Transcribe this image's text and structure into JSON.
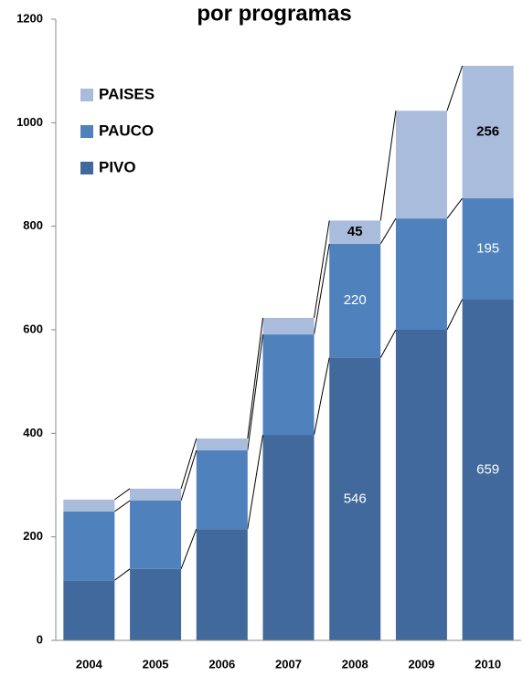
{
  "chart_data": {
    "type": "stacked_bar",
    "title": "por programas",
    "categories": [
      "2004",
      "2005",
      "2006",
      "2007",
      "2008",
      "2009",
      "2010"
    ],
    "series": [
      {
        "name": "PIVO",
        "color": "#41699b",
        "values": [
          116,
          138,
          215,
          397,
          546,
          600,
          659
        ],
        "value_labels": [
          null,
          null,
          null,
          null,
          "546",
          null,
          "659"
        ]
      },
      {
        "name": "PAUCO",
        "color": "#4f81bd",
        "values": [
          133,
          132,
          152,
          194,
          220,
          215,
          195
        ],
        "value_labels": [
          null,
          null,
          null,
          null,
          "220",
          null,
          "195"
        ]
      },
      {
        "name": "PAISES",
        "color": "#a9bcdc",
        "values": [
          23,
          23,
          23,
          32,
          45,
          208,
          256
        ],
        "value_labels": [
          null,
          null,
          null,
          null,
          "45",
          null,
          "256"
        ]
      }
    ],
    "ylim": [
      0,
      1200
    ],
    "yticks": [
      0,
      200,
      400,
      600,
      800,
      1000,
      1200
    ],
    "grid": false,
    "legend": "top-left"
  }
}
